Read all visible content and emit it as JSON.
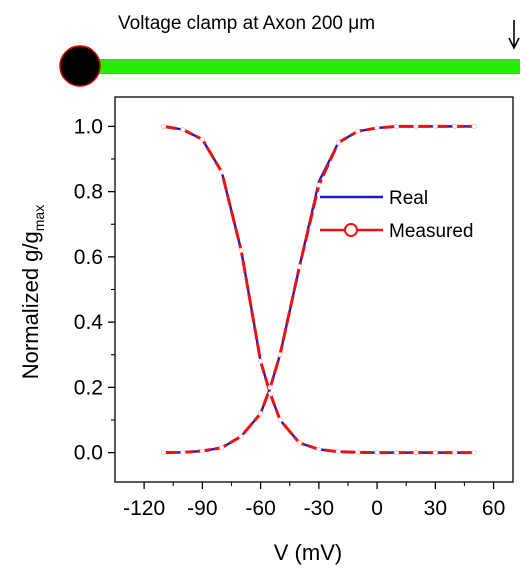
{
  "header": {
    "title": "Voltage clamp at Axon 200 μm",
    "axon_color": "#22ee00",
    "soma_color": "#000000",
    "soma_outline": "#cc0000"
  },
  "chart_data": {
    "type": "line",
    "xlabel": "V (mV)",
    "ylabel_main": "Normalized g/g",
    "ylabel_sub": "max",
    "xlim": [
      -135,
      70
    ],
    "ylim": [
      -0.09,
      1.09
    ],
    "xticks": [
      -120,
      -90,
      -60,
      -30,
      0,
      30,
      60
    ],
    "xtick_labels": [
      "-120",
      "-90",
      "-60",
      "-30",
      "0",
      "30",
      "60"
    ],
    "yticks": [
      0.0,
      0.2,
      0.4,
      0.6,
      0.8,
      1.0
    ],
    "ytick_labels": [
      "0.0",
      "0.2",
      "0.4",
      "0.6",
      "0.8",
      "1.0"
    ],
    "legend_position": "right",
    "x": [
      -110,
      -100,
      -90,
      -80,
      -70,
      -60,
      -55,
      -50,
      -40,
      -30,
      -20,
      -10,
      0,
      10,
      20,
      30,
      40,
      50
    ],
    "series": [
      {
        "name": "Real",
        "color": "#1a1acc",
        "curves": [
          [
            1.0,
            0.99,
            0.96,
            0.86,
            0.62,
            0.28,
            0.18,
            0.1,
            0.03,
            0.01,
            0.003,
            0.001,
            0.0,
            0.0,
            0.0,
            0.0,
            0.0,
            0.0
          ],
          [
            0.0,
            0.001,
            0.005,
            0.015,
            0.05,
            0.12,
            0.2,
            0.3,
            0.57,
            0.83,
            0.95,
            0.985,
            0.995,
            1.0,
            1.0,
            1.0,
            1.0,
            1.0
          ]
        ]
      },
      {
        "name": "Measured",
        "color": "#ee1111",
        "marker": "open-circle",
        "curves": [
          [
            1.0,
            0.99,
            0.96,
            0.86,
            0.62,
            0.28,
            0.18,
            0.1,
            0.03,
            0.01,
            0.003,
            0.001,
            0.0,
            0.0,
            0.0,
            0.0,
            0.0,
            0.0
          ],
          [
            0.0,
            0.001,
            0.005,
            0.015,
            0.05,
            0.12,
            0.2,
            0.3,
            0.57,
            0.82,
            0.95,
            0.985,
            0.995,
            1.0,
            1.0,
            1.0,
            1.0,
            1.0
          ]
        ]
      }
    ]
  }
}
